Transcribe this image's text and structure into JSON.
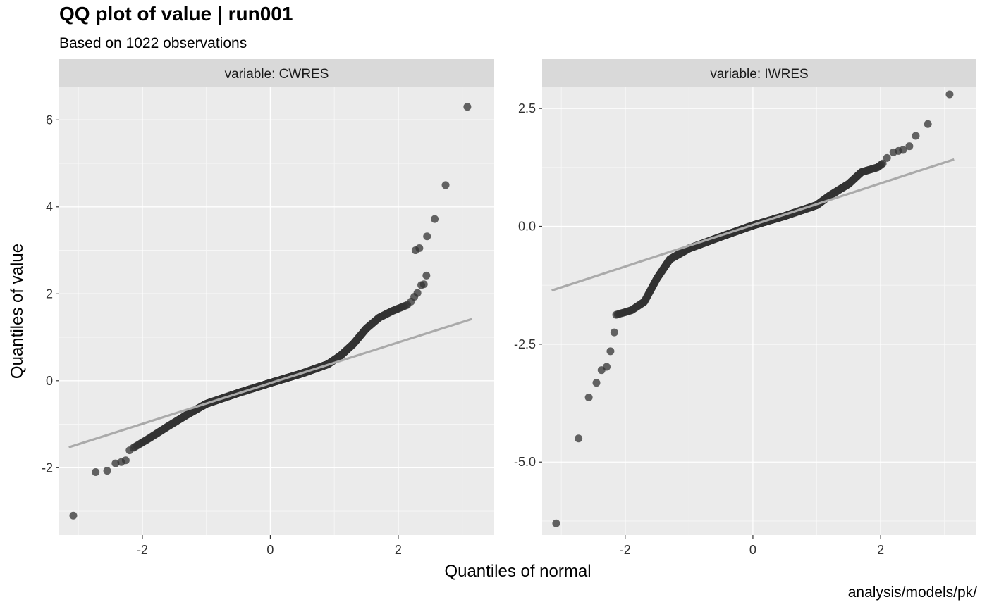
{
  "chart_data": {
    "type": "scatter",
    "title": "QQ plot of value | run001",
    "subtitle": "Based on 1022 observations",
    "caption": "analysis/models/pk/",
    "xlabel": "Quantiles of normal",
    "ylabel": "Quantiles of value",
    "grid": true,
    "panels": [
      {
        "strip": "variable: CWRES",
        "xlim": [
          -3.3,
          3.5
        ],
        "ylim": [
          -3.55,
          6.75
        ],
        "xticks": [
          -2,
          0,
          2
        ],
        "xtick_labels": [
          "-2",
          "0",
          "2"
        ],
        "yticks": [
          -2,
          0,
          2,
          4,
          6
        ],
        "ytick_labels": [
          "-2",
          "0",
          "2",
          "4",
          "6"
        ],
        "line": {
          "x": [
            -3.15,
            3.15
          ],
          "y": [
            -1.53,
            1.42
          ]
        },
        "tail_points": [
          [
            -3.08,
            -3.1
          ],
          [
            -2.73,
            -2.1
          ],
          [
            -2.55,
            -2.07
          ],
          [
            -2.42,
            -1.9
          ],
          [
            -2.33,
            -1.87
          ],
          [
            -2.26,
            -1.83
          ],
          [
            -2.2,
            -1.6
          ],
          [
            2.2,
            1.82
          ],
          [
            2.25,
            1.93
          ],
          [
            2.3,
            2.02
          ],
          [
            2.36,
            2.2
          ],
          [
            2.4,
            2.22
          ],
          [
            2.44,
            2.42
          ],
          [
            2.27,
            3.0
          ],
          [
            2.33,
            3.05
          ],
          [
            2.45,
            3.32
          ],
          [
            2.57,
            3.72
          ],
          [
            2.74,
            4.5
          ],
          [
            3.08,
            6.3
          ]
        ],
        "body_knots": [
          [
            -2.15,
            -1.55
          ],
          [
            -1.9,
            -1.33
          ],
          [
            -1.6,
            -1.05
          ],
          [
            -1.3,
            -0.78
          ],
          [
            -1.0,
            -0.53
          ],
          [
            -0.5,
            -0.28
          ],
          [
            0.0,
            -0.05
          ],
          [
            0.5,
            0.17
          ],
          [
            0.9,
            0.38
          ],
          [
            1.1,
            0.58
          ],
          [
            1.3,
            0.85
          ],
          [
            1.5,
            1.2
          ],
          [
            1.7,
            1.45
          ],
          [
            1.9,
            1.6
          ],
          [
            2.15,
            1.75
          ]
        ]
      },
      {
        "strip": "variable: IWRES",
        "xlim": [
          -3.3,
          3.5
        ],
        "ylim": [
          -6.55,
          2.95
        ],
        "xticks": [
          -2,
          0,
          2
        ],
        "xtick_labels": [
          "-2",
          "0",
          "2"
        ],
        "yticks": [
          -5,
          -2.5,
          0,
          2.5
        ],
        "ytick_labels": [
          "-5.0",
          "-2.5",
          "0.0",
          "2.5"
        ],
        "line": {
          "x": [
            -3.15,
            3.15
          ],
          "y": [
            -1.36,
            1.42
          ]
        },
        "tail_points": [
          [
            -3.08,
            -6.3
          ],
          [
            -2.73,
            -4.5
          ],
          [
            -2.57,
            -3.63
          ],
          [
            -2.45,
            -3.32
          ],
          [
            -2.37,
            -3.05
          ],
          [
            -2.29,
            -2.98
          ],
          [
            -2.23,
            -2.65
          ],
          [
            -2.17,
            -2.25
          ],
          [
            2.1,
            1.45
          ],
          [
            2.2,
            1.57
          ],
          [
            2.28,
            1.6
          ],
          [
            2.35,
            1.62
          ],
          [
            2.45,
            1.7
          ],
          [
            2.55,
            1.92
          ],
          [
            2.74,
            2.17
          ],
          [
            3.08,
            2.8
          ]
        ],
        "body_knots": [
          [
            -2.15,
            -1.88
          ],
          [
            -1.9,
            -1.78
          ],
          [
            -1.7,
            -1.6
          ],
          [
            -1.5,
            -1.1
          ],
          [
            -1.3,
            -0.7
          ],
          [
            -1.0,
            -0.47
          ],
          [
            -0.5,
            -0.22
          ],
          [
            0.0,
            0.02
          ],
          [
            0.5,
            0.22
          ],
          [
            1.0,
            0.45
          ],
          [
            1.2,
            0.65
          ],
          [
            1.5,
            0.9
          ],
          [
            1.7,
            1.15
          ],
          [
            1.95,
            1.25
          ],
          [
            2.05,
            1.35
          ]
        ]
      }
    ]
  }
}
